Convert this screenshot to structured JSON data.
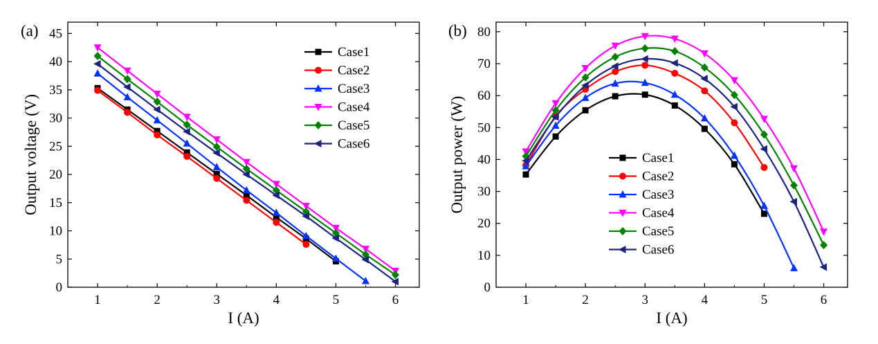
{
  "chart_data": [
    {
      "type": "line",
      "panel_label": "(a)",
      "xlabel": "I (A)",
      "ylabel": "Output voltage (V)",
      "xlim": [
        0.5,
        6.4
      ],
      "ylim": [
        0,
        47
      ],
      "xticks": [
        1,
        2,
        3,
        4,
        5,
        6
      ],
      "yticks": [
        0,
        5,
        10,
        15,
        20,
        25,
        30,
        35,
        40,
        45
      ],
      "legend_position": "top-right",
      "grid": false,
      "series": [
        {
          "name": "Case1",
          "color": "#000000",
          "marker": "square",
          "x": [
            1,
            1.5,
            2,
            2.5,
            3,
            3.5,
            4,
            4.5,
            5
          ],
          "y": [
            35.3,
            31.5,
            27.7,
            23.9,
            20.1,
            16.3,
            12.4,
            8.6,
            4.6
          ]
        },
        {
          "name": "Case2",
          "color": "#ff0000",
          "marker": "circle",
          "x": [
            1,
            1.5,
            2,
            2.5,
            3,
            3.5,
            4,
            4.5
          ],
          "y": [
            34.9,
            31.0,
            27.0,
            23.2,
            19.3,
            15.4,
            11.5,
            7.6
          ]
        },
        {
          "name": "Case3",
          "color": "#0033ff",
          "marker": "triangle-up",
          "x": [
            1,
            1.5,
            2,
            2.5,
            3,
            3.5,
            4,
            4.5,
            5,
            5.5
          ],
          "y": [
            37.9,
            33.7,
            29.6,
            25.5,
            21.3,
            17.2,
            13.2,
            9.1,
            5.1,
            1.1
          ]
        },
        {
          "name": "Case4",
          "color": "#ff00ff",
          "marker": "triangle-down",
          "x": [
            1,
            1.5,
            2,
            2.5,
            3,
            3.5,
            4,
            4.5,
            5,
            5.5,
            6
          ],
          "y": [
            42.5,
            38.4,
            34.3,
            30.2,
            26.2,
            22.2,
            18.3,
            14.4,
            10.5,
            6.8,
            2.9
          ]
        },
        {
          "name": "Case5",
          "color": "#008000",
          "marker": "diamond",
          "x": [
            1,
            1.5,
            2,
            2.5,
            3,
            3.5,
            4,
            4.5,
            5,
            5.5,
            6
          ],
          "y": [
            41.0,
            36.9,
            32.9,
            28.8,
            24.9,
            21.0,
            17.2,
            13.4,
            9.6,
            5.8,
            2.2
          ]
        },
        {
          "name": "Case6",
          "color": "#1a237e",
          "marker": "triangle-left",
          "x": [
            1,
            1.5,
            2,
            2.5,
            3,
            3.5,
            4,
            4.5,
            5,
            5.5,
            6
          ],
          "y": [
            39.6,
            35.5,
            31.5,
            27.6,
            23.8,
            20.0,
            16.3,
            12.6,
            8.7,
            4.9,
            1.0
          ]
        }
      ]
    },
    {
      "type": "line",
      "panel_label": "(b)",
      "xlabel": "I (A)",
      "ylabel": "Output power (W)",
      "xlim": [
        0.5,
        6.4
      ],
      "ylim": [
        0,
        83
      ],
      "xticks": [
        1,
        2,
        3,
        4,
        5,
        6
      ],
      "yticks": [
        0,
        10,
        20,
        30,
        40,
        50,
        60,
        70,
        80
      ],
      "legend_position": "bottom-center",
      "grid": false,
      "series": [
        {
          "name": "Case1",
          "color": "#000000",
          "marker": "square",
          "x": [
            1,
            1.5,
            2,
            2.5,
            3,
            3.5,
            4,
            4.5,
            5
          ],
          "y": [
            35.3,
            47.2,
            55.4,
            59.8,
            60.3,
            56.9,
            49.6,
            38.5,
            23.0
          ]
        },
        {
          "name": "Case2",
          "color": "#ff0000",
          "marker": "circle",
          "x": [
            1,
            1.5,
            2,
            2.5,
            3,
            3.5,
            4,
            4.5,
            5
          ],
          "y": [
            38.2,
            53.5,
            62.0,
            67.5,
            69.5,
            67.0,
            61.5,
            51.5,
            37.5
          ]
        },
        {
          "name": "Case3",
          "color": "#0033ff",
          "marker": "triangle-up",
          "x": [
            1,
            1.5,
            2,
            2.5,
            3,
            3.5,
            4,
            4.5,
            5,
            5.5
          ],
          "y": [
            37.9,
            50.6,
            59.3,
            63.8,
            64.0,
            60.3,
            52.9,
            41.2,
            25.5,
            6.0
          ]
        },
        {
          "name": "Case4",
          "color": "#ff00ff",
          "marker": "triangle-down",
          "x": [
            1,
            1.5,
            2,
            2.5,
            3,
            3.5,
            4,
            4.5,
            5,
            5.5,
            6
          ],
          "y": [
            42.5,
            57.6,
            68.6,
            75.6,
            78.6,
            77.8,
            73.2,
            64.8,
            52.7,
            37.2,
            17.4
          ]
        },
        {
          "name": "Case5",
          "color": "#008000",
          "marker": "diamond",
          "x": [
            1,
            1.5,
            2,
            2.5,
            3,
            3.5,
            4,
            4.5,
            5,
            5.5,
            6
          ],
          "y": [
            41.0,
            55.4,
            65.7,
            72.1,
            74.8,
            73.9,
            68.8,
            60.2,
            47.8,
            31.9,
            13.2
          ]
        },
        {
          "name": "Case6",
          "color": "#1a237e",
          "marker": "triangle-left",
          "x": [
            1,
            1.5,
            2,
            2.5,
            3,
            3.5,
            4,
            4.5,
            5,
            5.5,
            6
          ],
          "y": [
            39.6,
            53.3,
            63.2,
            69.2,
            71.5,
            70.2,
            65.3,
            56.5,
            43.3,
            26.8,
            6.3
          ]
        }
      ]
    }
  ]
}
